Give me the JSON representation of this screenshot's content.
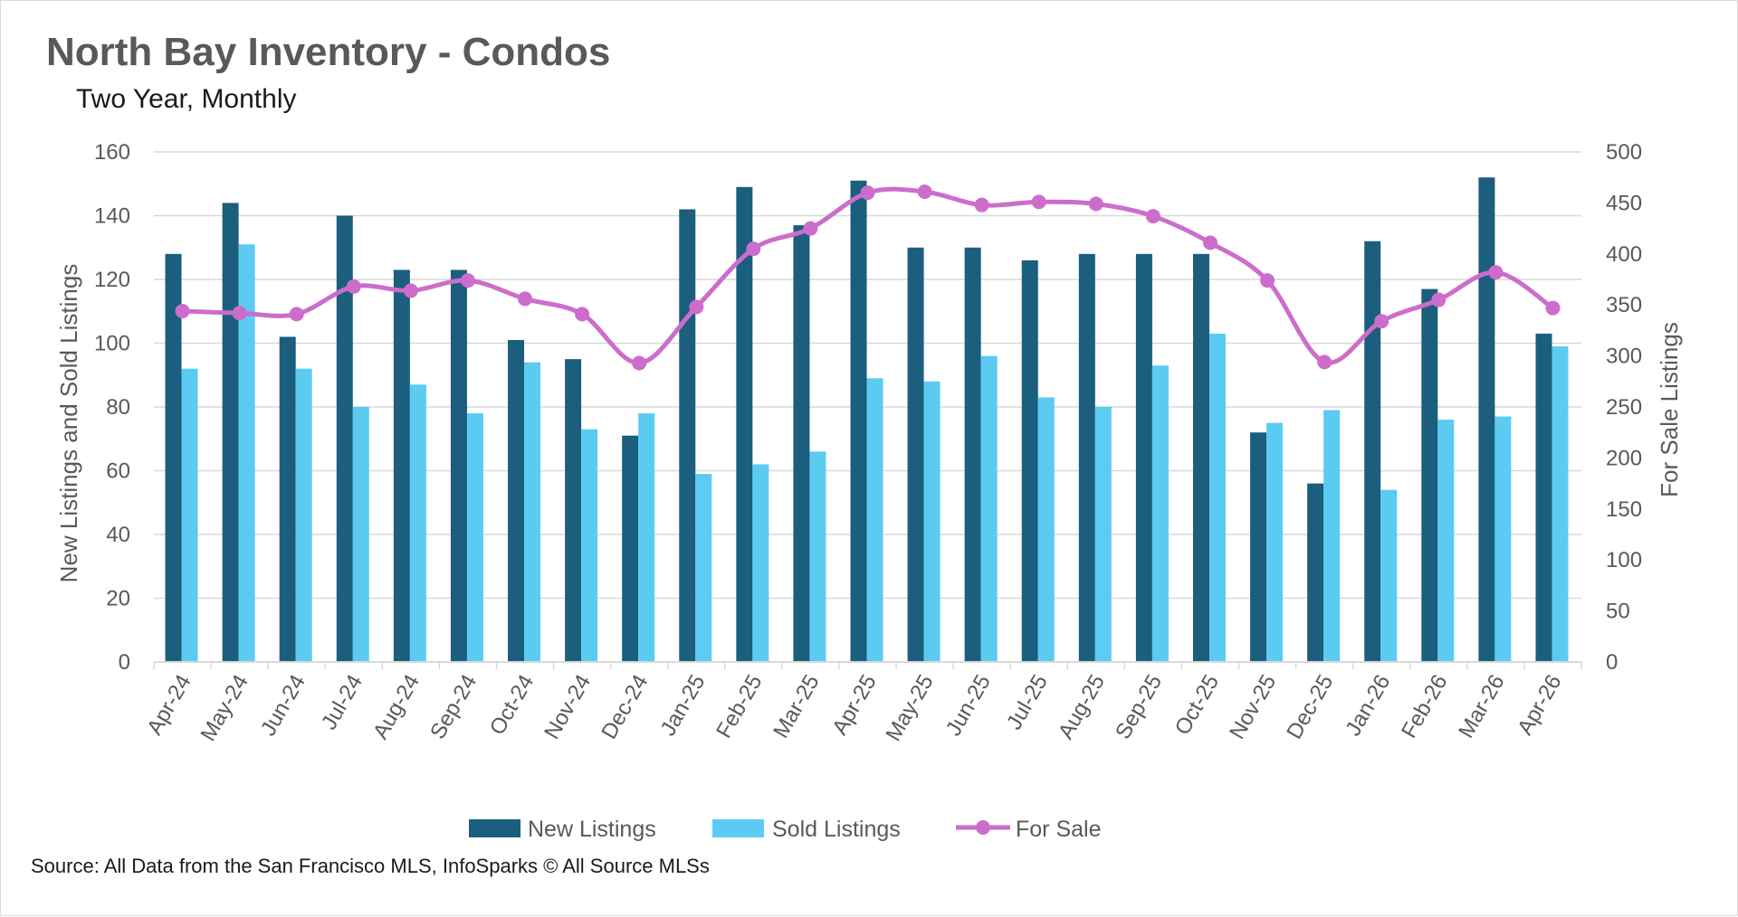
{
  "colors": {
    "new_listings": "#1b5e7e",
    "sold_listings": "#5ccbf2",
    "for_sale": "#cc6dcc",
    "grid": "#d9d9d9",
    "text": "#595959"
  },
  "chart_data": {
    "type": "bar",
    "title": "North Bay Inventory - Condos",
    "subtitle": "Two Year, Monthly",
    "ylabel": "New Listings and Sold Listings",
    "y2label": "For Sale Listings",
    "ylim": [
      0,
      160
    ],
    "y2lim": [
      0,
      500
    ],
    "yticks": [
      "0",
      "20",
      "40",
      "60",
      "80",
      "100",
      "120",
      "140",
      "160"
    ],
    "y2ticks": [
      "0",
      "50",
      "100",
      "150",
      "200",
      "250",
      "300",
      "350",
      "400",
      "450",
      "500"
    ],
    "grid": true,
    "legend_position": "bottom",
    "categories": [
      "Apr-24",
      "May-24",
      "Jun-24",
      "Jul-24",
      "Aug-24",
      "Sep-24",
      "Oct-24",
      "Nov-24",
      "Dec-24",
      "Jan-25",
      "Feb-25",
      "Mar-25",
      "Apr-25",
      "May-25",
      "Jun-25",
      "Jul-25",
      "Aug-25",
      "Sep-25",
      "Oct-25",
      "Nov-25",
      "Dec-25",
      "Jan-26",
      "Feb-26",
      "Mar-26",
      "Apr-26"
    ],
    "series": [
      {
        "name": "New Listings",
        "type": "bar",
        "axis": "left",
        "values": [
          128,
          144,
          102,
          140,
          123,
          123,
          101,
          95,
          71,
          142,
          149,
          137,
          151,
          130,
          130,
          126,
          128,
          128,
          128,
          72,
          56,
          132,
          117,
          152,
          103
        ]
      },
      {
        "name": "Sold Listings",
        "type": "bar",
        "axis": "left",
        "values": [
          92,
          131,
          92,
          80,
          87,
          78,
          94,
          73,
          78,
          59,
          62,
          66,
          89,
          88,
          96,
          83,
          80,
          93,
          103,
          75,
          79,
          54,
          76,
          77,
          99
        ]
      },
      {
        "name": "For Sale",
        "type": "line",
        "axis": "right",
        "values": [
          344,
          342,
          341,
          368,
          364,
          374,
          356,
          341,
          293,
          348,
          405,
          425,
          460,
          461,
          448,
          451,
          449,
          437,
          411,
          374,
          294,
          334,
          355,
          382,
          347
        ]
      }
    ]
  },
  "footer": {
    "source": "Source: All Data from the San Francisco MLS, InfoSparks © All Source MLSs"
  }
}
